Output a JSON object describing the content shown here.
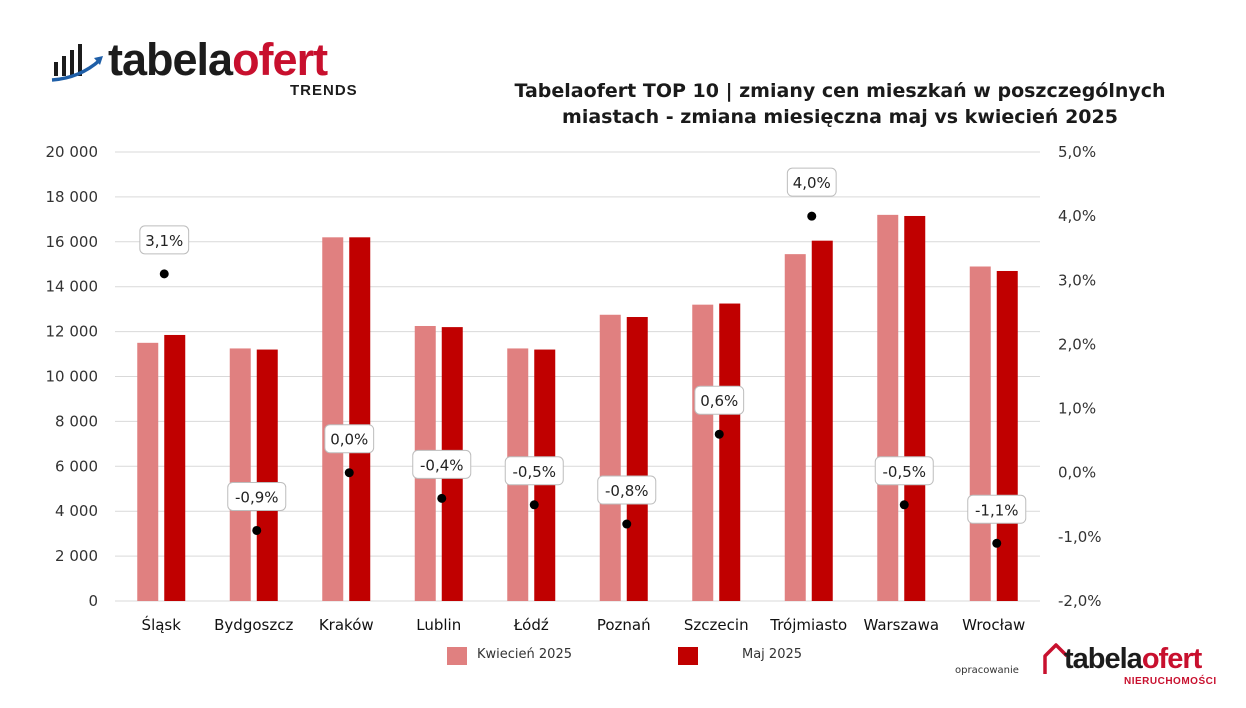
{
  "brand": {
    "name_part1": "tabela",
    "name_part2": "ofert",
    "subtitle": "TRENDS"
  },
  "credit": {
    "label": "opracowanie",
    "name_part1": "tabela",
    "name_part2": "ofert",
    "subtitle": "NIERUCHOMOŚCI"
  },
  "chart_data": {
    "type": "bar",
    "title": "Tabelaofert TOP 10 | zmiany cen mieszkań w poszczególnych miastach - zmiana miesięczna maj vs kwiecień 2025",
    "categories": [
      "Śląsk",
      "Bydgoszcz",
      "Kraków",
      "Lublin",
      "Łódź",
      "Poznań",
      "Szczecin",
      "Trójmiasto",
      "Warszawa",
      "Wrocław"
    ],
    "series": [
      {
        "name": "Kwiecień 2025",
        "color": "#e08080",
        "axis": "left",
        "values": [
          11500,
          11250,
          16200,
          12250,
          11250,
          12750,
          13200,
          15450,
          17200,
          14900
        ]
      },
      {
        "name": "Maj 2025",
        "color": "#c00000",
        "axis": "left",
        "values": [
          11850,
          11200,
          16200,
          12200,
          11200,
          12650,
          13250,
          16050,
          17150,
          14700
        ]
      }
    ],
    "change": {
      "name": "zmiana miesięczna",
      "axis": "right",
      "values": [
        3.1,
        -0.9,
        0.0,
        -0.4,
        -0.5,
        -0.8,
        0.6,
        4.0,
        -0.5,
        -1.1
      ],
      "labels": [
        "3,1%",
        "-0,9%",
        "0,0%",
        "-0,4%",
        "-0,5%",
        "-0,8%",
        "0,6%",
        "4,0%",
        "-0,5%",
        "-1,1%"
      ]
    },
    "y_left": {
      "min": 0,
      "max": 20000,
      "step": 2000,
      "tick_labels": [
        "0",
        "2 000",
        "4 000",
        "6 000",
        "8 000",
        "10 000",
        "12 000",
        "14 000",
        "16 000",
        "18 000",
        "20 000"
      ]
    },
    "y_right": {
      "min": -2.0,
      "max": 5.0,
      "step": 1.0,
      "tick_labels": [
        "-2,0%",
        "-1,0%",
        "0,0%",
        "1,0%",
        "2,0%",
        "3,0%",
        "4,0%",
        "5,0%"
      ]
    },
    "grid": true,
    "legend": "bottom"
  }
}
